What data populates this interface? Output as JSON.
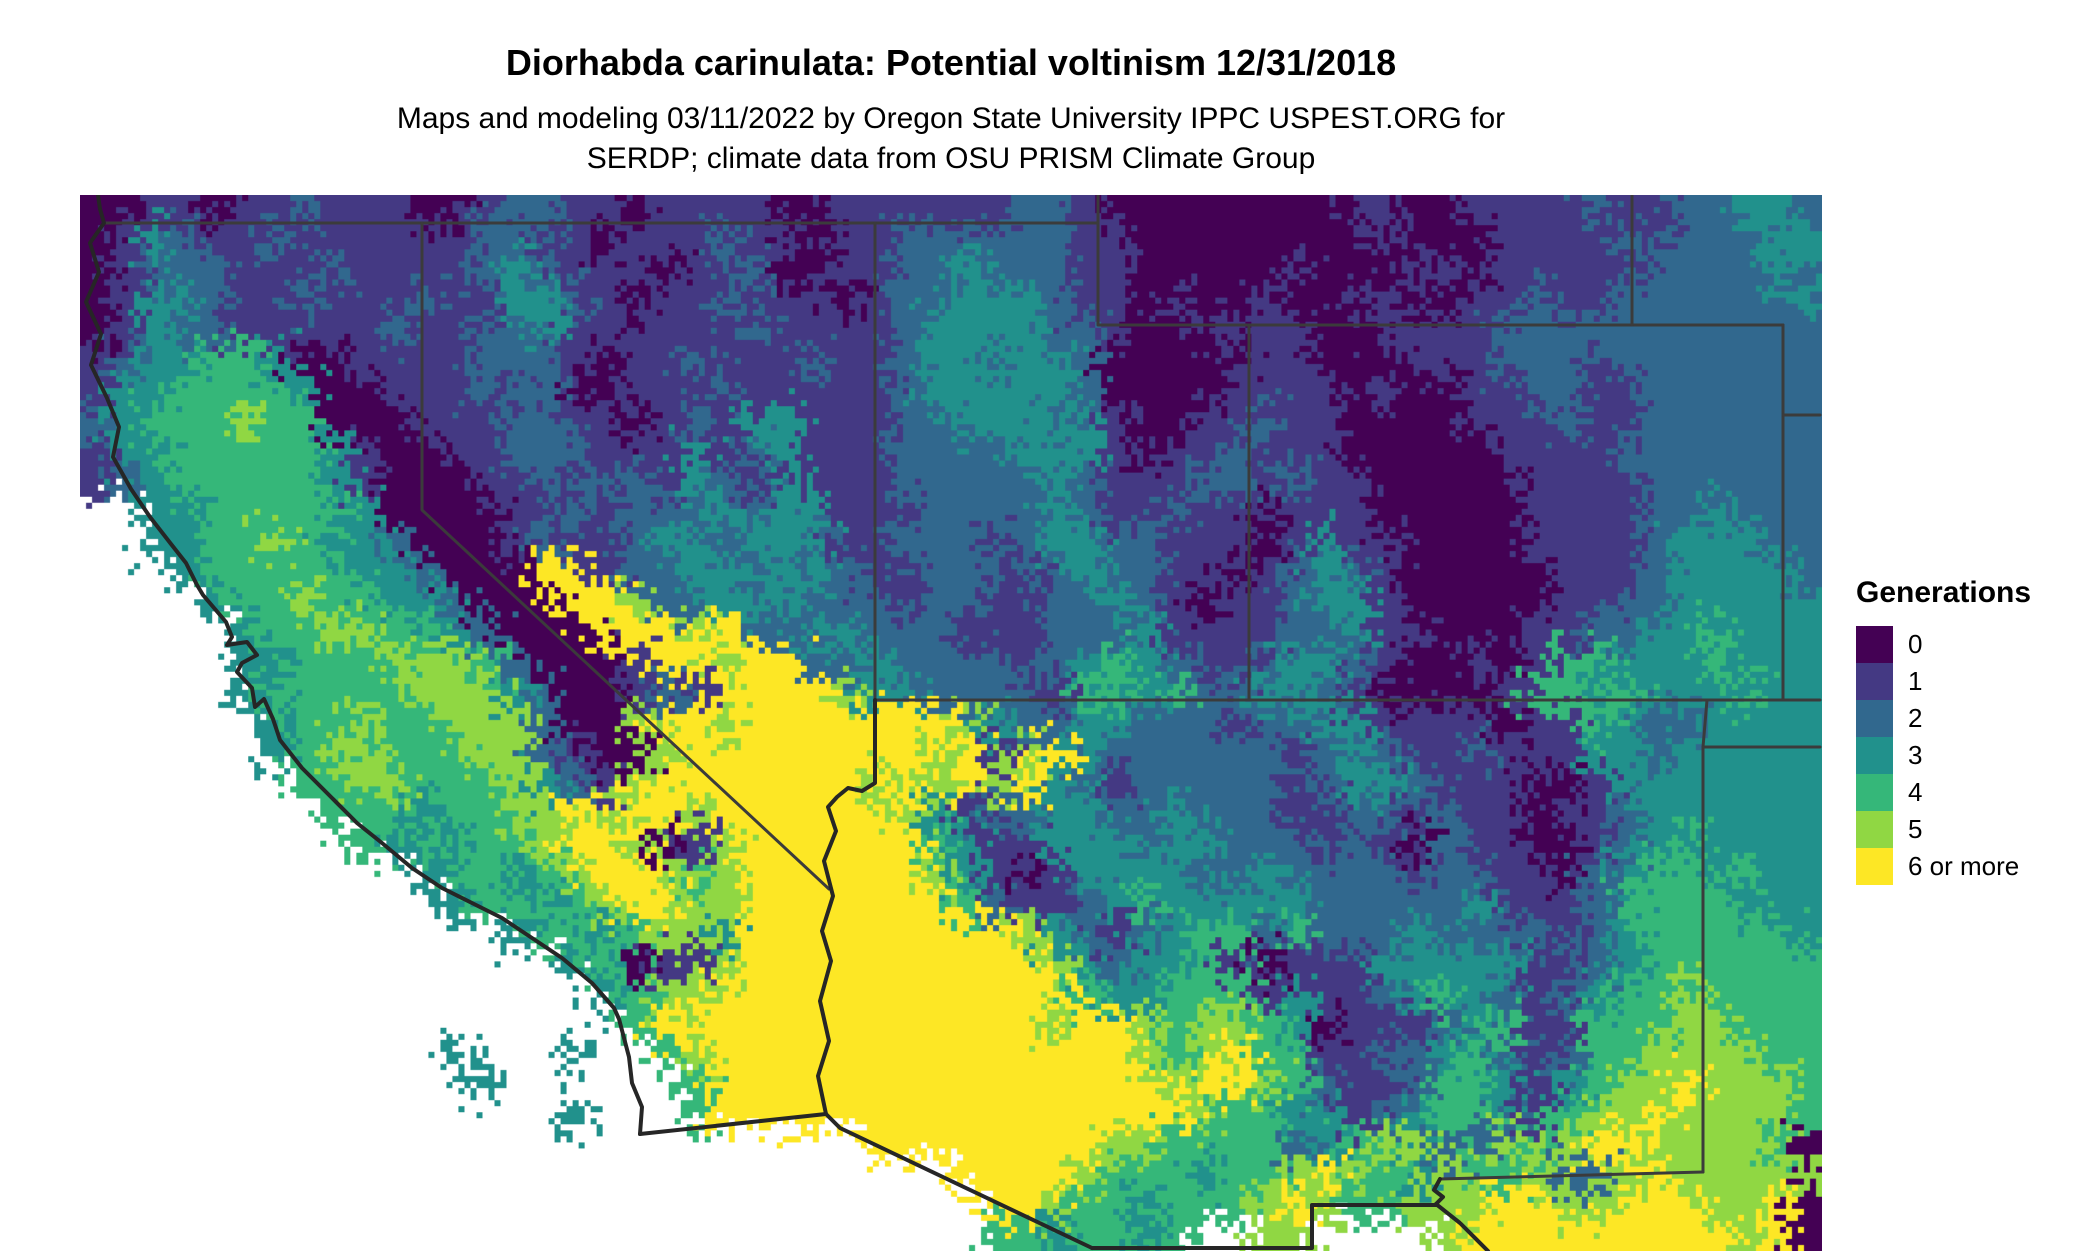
{
  "title": "Diorhabda carinulata: Potential voltinism 12/31/2018",
  "subtitle": {
    "line1": "Maps and modeling 03/11/2022 by Oregon State University IPPC USPEST.ORG for",
    "line2": "SERDP; climate data from OSU PRISM Climate Group"
  },
  "legend": {
    "title": "Generations",
    "items": [
      {
        "label": "0",
        "color": "#440154"
      },
      {
        "label": "1",
        "color": "#443983"
      },
      {
        "label": "2",
        "color": "#31688e"
      },
      {
        "label": "3",
        "color": "#21918c"
      },
      {
        "label": "4",
        "color": "#35b779"
      },
      {
        "label": "5",
        "color": "#90d743"
      },
      {
        "label": "6 or more",
        "color": "#fde725"
      }
    ]
  },
  "map": {
    "background": "#ffffff",
    "state_border_color": "#3b3b3b",
    "outline_color": "#262626",
    "raster": {
      "cols": 58,
      "rows": 35,
      "cell": 30,
      "palette": {
        "0": "#440154",
        "1": "#443983",
        "2": "#31688e",
        "3": "#21918c",
        "4": "#35b779",
        "5": "#90d743",
        "6": "#fde725"
      },
      "grid": [
        "0011011211100122110111100111111221000000001100111121122332",
        "0132112111111221101112110112222221100000000100011112122233",
        "0122211121111232111011200112232221100000100011011111222232",
        "0133211211121133210112111012233321101001001100112112222223",
        "0132211111211223111111211112333322100111100111122222222222",
        "1233443001111222101121112112332332000001100011122212222222",
        "1334444300111212001112111112333332000011110100112211222222",
        "2344454400011122110121331112233323100112110000111211222222",
        "1334444431001122211131231112222333101121110000011112222222",
        "1234444431000112122132131112222232111221211000001111222222",
        "..334444430000112122232331112222321121101110000011112232220",
        "..33445433200012112332332112221233221110131100001111233322",
        "...3444443320006612233233211222123221101232100000111233332",
        "....3445443320006652233322212211223210112331000001122333330",
        ".....344554432000666562233222111222311112231100011223343330",
        ".....334445554200016656622322221234321123321001014433343330",
        ".....344444555320012166665332222144342233210000144343334330",
        "......34454455520056656666666532233222122331111011432233330",
        "......34554445521005666666665615632222221232112111332333330",
        ".......4455444532156666666565656321222221233211100133333330",
        "........44434455656656666665312233223222112212110112333333",
        ".........43434456650156666664311333233222121021100123433330",
        "...........3443456654566666653101333322322221221102344343300",
        "............344345665566666664211234333332222231112444433300",
        "..........    34434553666666666532123442422232222123444443300",
        "..........      340115666666666653233410111333331123444444300",
        "..........       34556666666666664334441311234321234454444400",
        "..........        466666666666665665455430111234114445544440",
        "..........  3   3  456666666666666654564411223421244555544400",
        "..........   3      46666666666666665665421124431345565554400",
        "..........      3   46666666666666666544331234421455655554400",
        "....................      66666666554444234552254566555540000",
        "....................         66665444344565435445225655555000",
        "....................          66544344456544555665566655600",
        "....................          4434434  55....5666666666560"
      ],
      "grid_note": "rows are normalized to 58 chars at render time; . = outside model extent (ocean / Mexico)"
    },
    "borders": {
      "state_lines": [
        "M 24,28 L 1018,28",
        "M 795,28 L 795,505",
        "M 1018,0 L 1018,130 L 1703,130",
        "M 1552,0 L 1552,130",
        "M 1169,130 L 1169,505",
        "M 1703,130 L 1703,505",
        "M 1703,220 L 1740,220",
        "M 795,505 L 1740,505",
        "M 1627,505 L 1623,552 L 1740,552",
        "M 1623,552 L 1623,977",
        "M 1623,977 L 1360,984",
        "M 342,28 L 342,315 L 749,694"
      ],
      "outline_lines": [
        "M 18,0 L 20,14 L 24,28 L 10,48 L 19,77 L 6,107 L 21,139 L 11,170 L 27,203 L 39,232 L 33,262 L 51,294 L 70,322 L 91,349 L 106,368 L 117,390 L 123,400 L 146,427 L 152,442 L 147,450 L 167,447 L 177,460 L 162,468 L 157,477 L 172,493 L 175,512 L 184,504 L 193,524 L 200,545 L 222,573 L 252,603 L 277,628 L 302,648 L 332,673 L 362,693 L 392,708 L 422,723 L 452,743 L 482,763 L 512,788 L 534,813 L 539,824 L 549,862 L 552,888 L 562,912 L 560,939",
        "M 560,939 L 746,919",
        "M 795,505 L 795,588 L 782,596 L 768,593 L 757,602 L 748,612 L 756,636 L 744,666 L 753,701 L 742,736 L 751,766 L 740,806 L 749,846 L 738,881 L 746,919",
        "M 746,919 L 760,933 L 1012,1053",
        "M 1012,1053 L 1232,1053 L 1232,1010 L 1357,1010",
        "M 1360,984 L 1354,995 L 1363,1002 L 1356,1009 L 1357,1010",
        "M 1356,1009 L 1380,1028 L 1408,1056"
      ]
    }
  }
}
